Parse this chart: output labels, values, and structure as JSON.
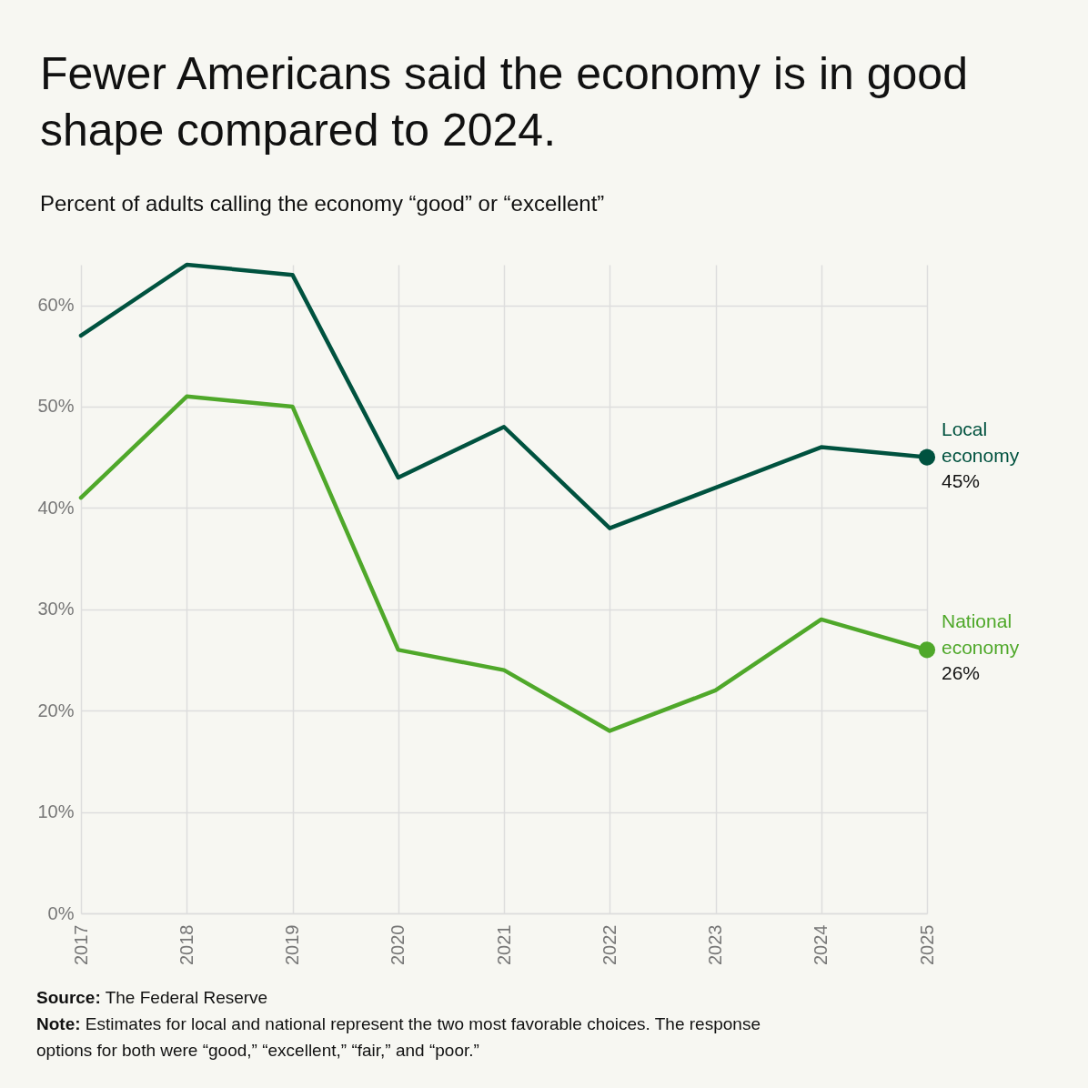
{
  "chart_data": {
    "type": "line",
    "title": "Fewer Americans said the economy is in good shape compared to 2024.",
    "subtitle": "Percent of adults calling the economy “good” or “excellent”",
    "categories": [
      "2017",
      "2018",
      "2019",
      "2020",
      "2021",
      "2022",
      "2023",
      "2024",
      "2025"
    ],
    "series": [
      {
        "name": "Local economy",
        "color": "#00523f",
        "values": [
          57,
          64,
          63,
          43,
          48,
          38,
          42,
          46,
          45
        ],
        "value_labels": [
          null,
          null,
          null,
          null,
          null,
          null,
          null,
          null,
          "45%"
        ]
      },
      {
        "name": "National economy",
        "color": "#4fa82a",
        "values": [
          41,
          51,
          50,
          26,
          24,
          18,
          22,
          29,
          26
        ],
        "value_labels": [
          null,
          null,
          null,
          null,
          null,
          null,
          null,
          null,
          "26%"
        ]
      }
    ],
    "ylim": [
      0,
      64
    ],
    "yticks": [
      {
        "value": 0,
        "label": "0%"
      },
      {
        "value": 10,
        "label": "10%"
      },
      {
        "value": 20,
        "label": "20%"
      },
      {
        "value": 30,
        "label": "30%"
      },
      {
        "value": 40,
        "label": "40%"
      },
      {
        "value": 50,
        "label": "50%"
      },
      {
        "value": 60,
        "label": "60%"
      }
    ],
    "grid": true,
    "annotations": [
      "Source: The Federal Reserve",
      "Note: Estimates for local and national represent the two most favorable choices. The response options for both were “good,” “excellent,” “fair,” and “poor.”"
    ]
  }
}
